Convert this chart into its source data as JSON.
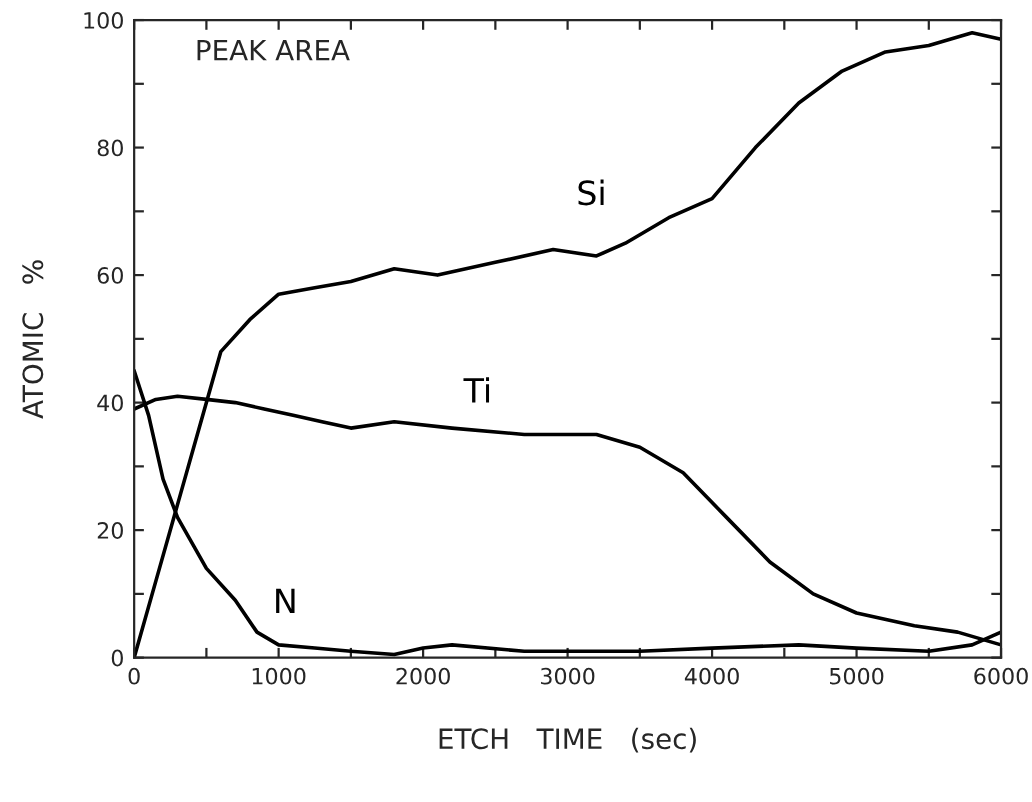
{
  "chart_data": {
    "type": "line",
    "xlabel": "ETCH   TIME   (sec)",
    "ylabel": "ATOMIC   %",
    "annotations": [
      "PEAK AREA"
    ],
    "xlim": [
      0,
      6000
    ],
    "ylim": [
      0,
      100
    ],
    "xticks": [
      0,
      {
        "value": 500,
        "label": null
      },
      1000,
      {
        "value": 1500,
        "label": null
      },
      2000,
      {
        "value": 2500,
        "label": null
      },
      3000,
      {
        "value": 3500,
        "label": null
      },
      4000,
      {
        "value": 4500,
        "label": null
      },
      5000,
      {
        "value": 5500,
        "label": null
      },
      6000
    ],
    "yticks": [
      0,
      {
        "value": 10,
        "label": null
      },
      20,
      {
        "value": 30,
        "label": null
      },
      40,
      {
        "value": 50,
        "label": null
      },
      60,
      {
        "value": 70,
        "label": null
      },
      80,
      {
        "value": 90,
        "label": null
      },
      100
    ],
    "grid": false,
    "legend": false,
    "marker": "none",
    "line_style": "solid",
    "series": [
      {
        "name": "Si",
        "color": "#000000",
        "x": [
          0,
          150,
          300,
          450,
          600,
          800,
          1000,
          1250,
          1500,
          1800,
          2100,
          2500,
          2900,
          3200,
          3400,
          3700,
          4000,
          4300,
          4600,
          4900,
          5200,
          5500,
          5800,
          6000
        ],
        "values": [
          0,
          12,
          24,
          36,
          48,
          53,
          57,
          58,
          59,
          61,
          60,
          62,
          64,
          63,
          65,
          69,
          72,
          80,
          87,
          92,
          95,
          96,
          98,
          97
        ]
      },
      {
        "name": "Ti",
        "color": "#000000",
        "x": [
          0,
          150,
          300,
          500,
          700,
          900,
          1100,
          1300,
          1500,
          1800,
          2200,
          2700,
          3200,
          3500,
          3800,
          4100,
          4400,
          4700,
          5000,
          5400,
          5700,
          6000
        ],
        "values": [
          39,
          40.5,
          41,
          40.5,
          40,
          39,
          38,
          37,
          36,
          37,
          36,
          35,
          35,
          33,
          29,
          22,
          15,
          10,
          7,
          5,
          4,
          2
        ]
      },
      {
        "name": "N",
        "color": "#000000",
        "x": [
          0,
          100,
          200,
          300,
          500,
          700,
          850,
          1000,
          1250,
          1500,
          1800,
          2000,
          2200,
          2700,
          3000,
          3500,
          4000,
          4600,
          5000,
          5500,
          5800,
          6000
        ],
        "values": [
          45,
          38,
          28,
          22,
          14,
          9,
          4,
          2,
          1.5,
          1,
          0.5,
          1.5,
          2,
          1,
          1,
          1,
          1.5,
          2,
          1.5,
          1,
          2,
          4
        ]
      }
    ]
  }
}
